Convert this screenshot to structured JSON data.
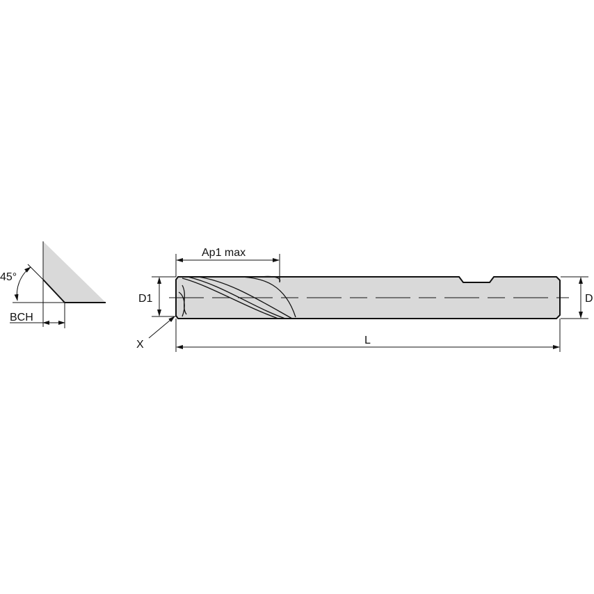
{
  "labels": {
    "angle": "45°",
    "bch": "BCH",
    "ap1": "Ap1 max",
    "d1": "D1",
    "d": "D",
    "l": "L",
    "x": "X"
  },
  "colors": {
    "fill": "#d9d9d9",
    "line": "#1a1a1a"
  }
}
